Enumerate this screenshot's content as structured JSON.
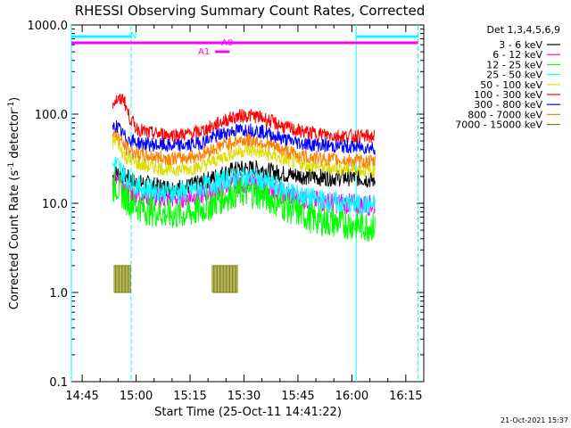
{
  "chart_data": {
    "type": "line",
    "title": "RHESSI Observing Summary Count Rates, Corrected",
    "xlabel": "Start Time (25-Oct-11 14:41:22)",
    "ylabel_main": "Corrected Count Rate (s",
    "ylabel_sup1": "-1",
    "ylabel_mid": " detector",
    "ylabel_sup2": "-1",
    "ylabel_end": ")",
    "yscale": "log",
    "ylim": [
      0.1,
      1000
    ],
    "xlim_min": [
      882,
      980
    ],
    "y_ticks": [
      {
        "v": 0.1,
        "label": "0.1"
      },
      {
        "v": 1,
        "label": "1.0"
      },
      {
        "v": 10,
        "label": "10.0"
      },
      {
        "v": 100,
        "label": "100.0"
      },
      {
        "v": 1000,
        "label": "1000.0"
      }
    ],
    "x_ticks": [
      {
        "v": 885,
        "label": "14:45"
      },
      {
        "v": 900,
        "label": "15:00"
      },
      {
        "v": 915,
        "label": "15:15"
      },
      {
        "v": 930,
        "label": "15:30"
      },
      {
        "v": 945,
        "label": "15:45"
      },
      {
        "v": 960,
        "label": "16:00"
      },
      {
        "v": 975,
        "label": "16:15"
      }
    ],
    "legend_title": "Det 1,3,4,5,6,9",
    "legend_position": "right",
    "series": [
      {
        "name": "3 - 6 keV",
        "color": "#000000",
        "x": [
          893.5,
          894.5,
          897,
          900,
          903,
          906,
          909,
          912,
          915,
          918,
          921,
          924,
          927,
          930,
          933,
          936,
          939,
          942,
          945,
          948,
          951,
          954,
          957,
          960,
          963,
          966.5
        ],
        "y": [
          20,
          22,
          20,
          17,
          16.5,
          15.5,
          15,
          15,
          15.5,
          17,
          19,
          21.5,
          23.5,
          24.5,
          24.5,
          23.5,
          22,
          21,
          20.5,
          20,
          19.5,
          19.5,
          19.5,
          19.5,
          19,
          18
        ]
      },
      {
        "name": "6 - 12 keV",
        "color": "#ff00ff",
        "x": [
          893.5,
          894.5,
          897,
          900,
          903,
          906,
          909,
          912,
          915,
          918,
          921,
          924,
          927,
          930,
          933,
          936,
          939,
          942,
          945,
          948,
          951,
          954,
          957,
          960,
          963,
          966.5
        ],
        "y": [
          17,
          18,
          14,
          12.5,
          12,
          11.5,
          11.5,
          11.5,
          12,
          12.5,
          13.5,
          15,
          16.5,
          17,
          16.5,
          15.5,
          14,
          12.5,
          11.5,
          11,
          10.5,
          10.2,
          10,
          9.8,
          9.6,
          9.5
        ]
      },
      {
        "name": "12 - 25 keV",
        "color": "#00ff00",
        "x": [
          893.5,
          894.5,
          897,
          900,
          903,
          906,
          909,
          912,
          915,
          918,
          921,
          924,
          927,
          930,
          933,
          936,
          939,
          942,
          945,
          948,
          951,
          954,
          957,
          960,
          963,
          966.5
        ],
        "y": [
          15,
          16,
          11.5,
          9.5,
          8.5,
          8,
          7.5,
          7.5,
          7.8,
          8.5,
          9.8,
          11.5,
          13,
          13.5,
          13,
          12,
          10.5,
          9,
          8,
          7,
          6.5,
          6.2,
          6,
          5.8,
          5.6,
          5.5
        ]
      },
      {
        "name": "25 - 50 keV",
        "color": "#00ffff",
        "x": [
          893.5,
          894.5,
          897,
          900,
          903,
          906,
          909,
          912,
          915,
          918,
          921,
          924,
          927,
          930,
          933,
          936,
          939,
          942,
          945,
          948,
          951,
          954,
          957,
          960,
          963,
          966.5
        ],
        "y": [
          27,
          28,
          20,
          16,
          14.5,
          14,
          13.5,
          13.5,
          14,
          15,
          16.5,
          18,
          19.5,
          20,
          19,
          17.5,
          15.5,
          14,
          12.5,
          11.5,
          11,
          10.5,
          10,
          9.8,
          9.6,
          9.5
        ]
      },
      {
        "name": "50 - 100 keV",
        "color": "#dddd00",
        "x": [
          893.5,
          894.5,
          897,
          900,
          903,
          906,
          909,
          912,
          915,
          918,
          921,
          924,
          927,
          930,
          933,
          936,
          939,
          942,
          945,
          948,
          951,
          954,
          957,
          960,
          963,
          966.5
        ],
        "y": [
          48,
          52,
          33,
          28,
          26,
          25,
          24,
          24,
          24.5,
          26,
          29,
          33,
          37,
          39,
          38.5,
          36,
          33,
          30,
          28,
          26.5,
          25.5,
          25,
          24.5,
          24,
          23.5,
          23
        ]
      },
      {
        "name": "100 - 300 keV",
        "color": "#ff0000",
        "x": [
          893.5,
          894.5,
          895.5,
          896.5,
          897,
          898,
          900,
          903,
          906,
          909,
          912,
          915,
          918,
          921,
          924,
          927,
          930,
          933,
          936,
          939,
          942,
          945,
          948,
          951,
          954,
          957,
          960,
          963,
          966.5
        ],
        "y": [
          135,
          145,
          140,
          155,
          130,
          95,
          70,
          62,
          60,
          59,
          59,
          60,
          64,
          72,
          83,
          92,
          97,
          95,
          88,
          78,
          70,
          65,
          62,
          60,
          58,
          57,
          57,
          56,
          56
        ]
      },
      {
        "name": "300 - 800 keV",
        "color": "#0000ff",
        "x": [
          893.5,
          894.5,
          897,
          900,
          903,
          906,
          909,
          912,
          915,
          918,
          921,
          924,
          927,
          930,
          933,
          936,
          939,
          942,
          945,
          948,
          951,
          954,
          957,
          960,
          963,
          966.5
        ],
        "y": [
          70,
          74,
          55,
          48,
          46,
          45,
          44,
          44,
          45,
          48,
          54,
          60,
          65,
          67,
          66,
          62,
          56,
          51,
          48,
          46,
          45,
          44,
          43.5,
          43,
          42.5,
          42
        ]
      },
      {
        "name": "800 - 7000 keV",
        "color": "#ff8000",
        "x": [
          893.5,
          894.5,
          897,
          900,
          903,
          906,
          909,
          912,
          915,
          918,
          921,
          924,
          927,
          930,
          933,
          936,
          939,
          942,
          945,
          948,
          951,
          954,
          957,
          960,
          963,
          966.5
        ],
        "y": [
          58,
          60,
          42,
          36,
          34,
          33,
          32,
          32,
          33,
          35,
          40,
          45,
          49,
          51,
          50,
          47,
          42,
          38,
          35,
          33,
          32,
          31,
          30.5,
          30,
          29.5,
          29
        ]
      },
      {
        "name": "7000 - 15000 keV",
        "color": "#808000",
        "x": [
          893.8,
          897.8
        ],
        "y": [
          2,
          2
        ]
      }
    ],
    "attenuator_states": [
      {
        "x": [
          893.8,
          898.6
        ],
        "y_low": 1,
        "y_high": 2
      },
      {
        "x": [
          921.3,
          928.3
        ],
        "y_low": 1,
        "y_high": 2
      }
    ],
    "markers": {
      "N_label": "N",
      "A0_label": "A0",
      "A1_label": "A1",
      "N_color": "#00ffff",
      "A0_color": "#ff00ff",
      "A1_color": "#ff00ff",
      "dashed_lines_x": [
        898.6,
        978.4
      ],
      "solid_lines_x": [
        882,
        961.2
      ],
      "N_bars_x": [
        [
          882,
          898.6
        ],
        [
          961.2,
          978.4
        ]
      ],
      "A0_bar_x": [
        882,
        978.4
      ],
      "A1_bar_x": [
        922,
        926
      ]
    }
  },
  "footer": {
    "timestamp": "21-Oct-2021 15:37"
  }
}
